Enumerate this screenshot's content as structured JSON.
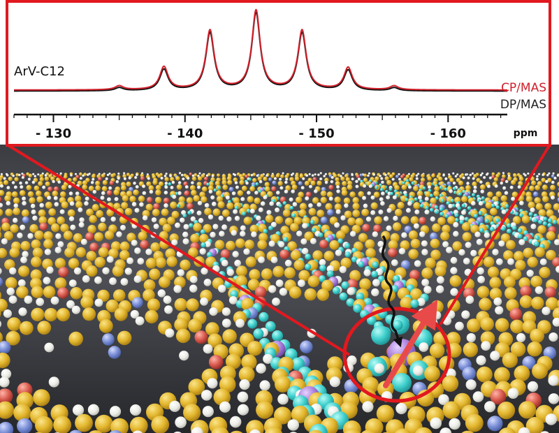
{
  "chart_data": {
    "type": "line",
    "sample_label": "ArV-C12",
    "xlabel": "ppm",
    "xlim": [
      -127,
      -164.5
    ],
    "x_ticks": [
      -130,
      -140,
      -150,
      -160
    ],
    "x_tick_labels": [
      "- 130",
      "- 140",
      "- 150",
      "- 160"
    ],
    "peaks_ppm": [
      -135.0,
      -138.4,
      -141.9,
      -145.4,
      -148.9,
      -152.4,
      -155.9
    ],
    "series": [
      {
        "name": "CP/MAS",
        "color": "#d0202a",
        "relative_intensities": [
          0.05,
          0.29,
          0.75,
          1.0,
          0.75,
          0.28,
          0.05
        ]
      },
      {
        "name": "DP/MAS",
        "color": "#111111",
        "relative_intensities": [
          0.04,
          0.27,
          0.73,
          0.98,
          0.73,
          0.26,
          0.04
        ]
      }
    ]
  },
  "colors": {
    "frame": "#e1191f",
    "cp_series": "#d0202a",
    "dp_series": "#111111",
    "carbon_atom": "#e2b52c",
    "hydrogen_atom": "#eeeeea",
    "fluorine_atom": "#3ecfcc",
    "arsenic_atom": "#a67ad9",
    "oxygen_atom": "#d95a4e",
    "nitrogen_atom": "#7b8fd6",
    "background": "#4a4c52"
  },
  "icons": {
    "spin_arrow": "arrow-icon",
    "relaxation_path": "wavy-arrow-icon",
    "highlight": "circle-highlight"
  }
}
